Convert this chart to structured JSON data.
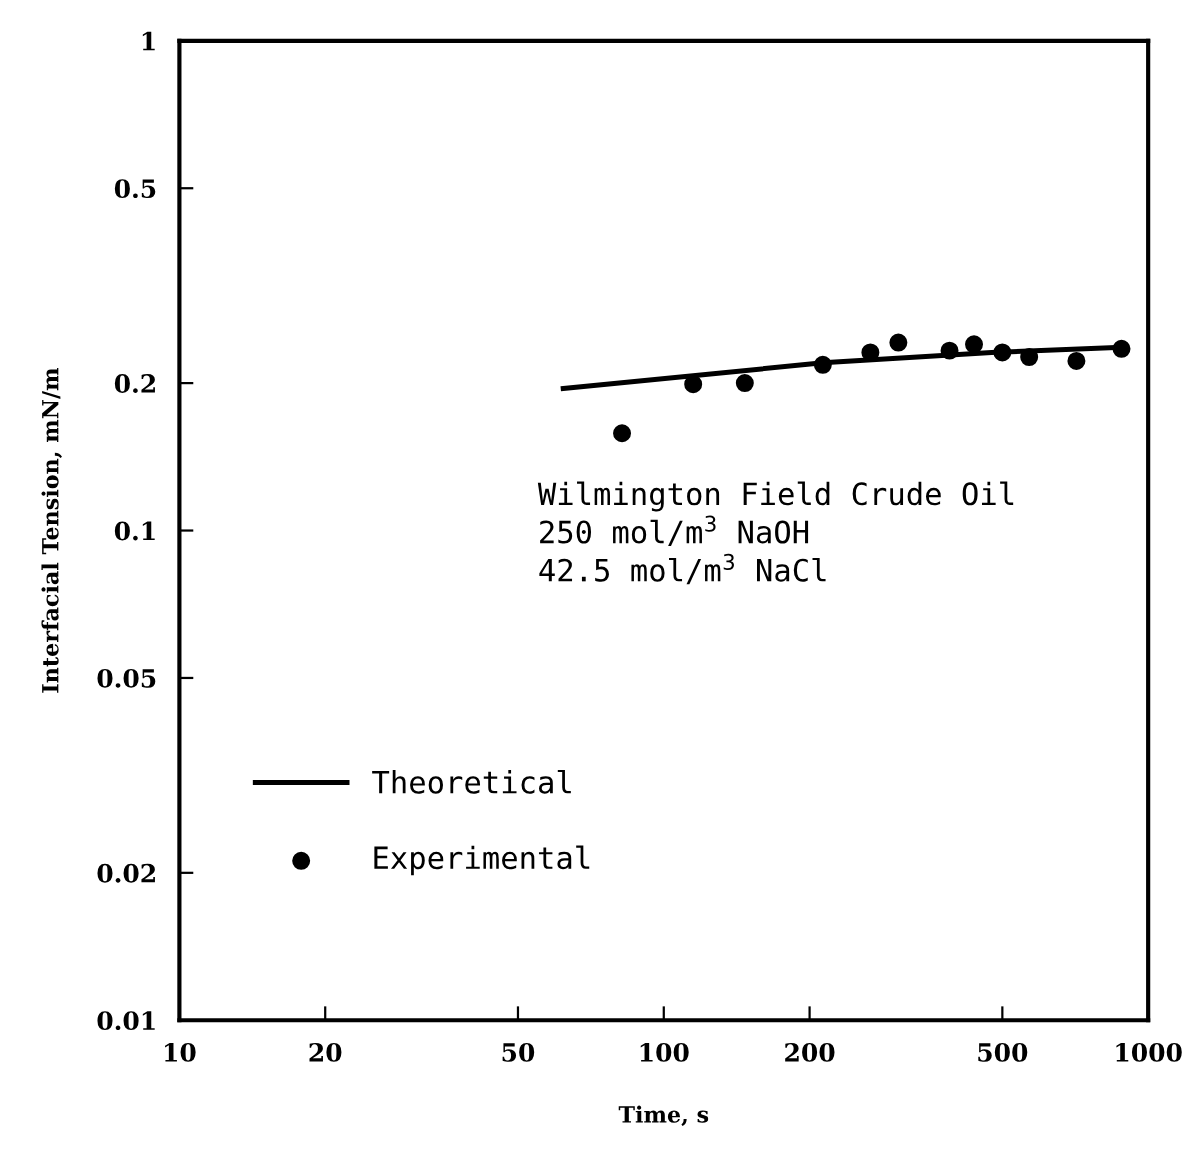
{
  "chart_data": {
    "type": "scatter",
    "xlabel": "Time, s",
    "ylabel": "Interfacial Tension, mN/m",
    "log": "xy",
    "xlim": [
      10,
      1000
    ],
    "ylim": [
      0.01,
      1
    ],
    "xticks": [
      10,
      20,
      50,
      100,
      200,
      500,
      1000
    ],
    "yticks": [
      0.01,
      0.02,
      0.05,
      0.1,
      0.2,
      0.5,
      1
    ],
    "grid": false,
    "legend": "bottom left",
    "annotations": [
      "Wilmington Field Crude Oil\n250 mol/m$^{3}$ NaOH\n42.5 mol/m$^{3}$ NaCl"
    ],
    "series": [
      {
        "name": "Theoretical",
        "type": "line",
        "color": "#000000",
        "marker": "none",
        "line_style": "solid",
        "x": [
          62,
          213,
          475,
          900
        ],
        "values": [
          0.195,
          0.22,
          0.231,
          0.237
        ]
      },
      {
        "name": "Experimental",
        "color": "#000000",
        "marker": "circle",
        "x": [
          82,
          115,
          147,
          213,
          267,
          305,
          389,
          437,
          500,
          568,
          711,
          881
        ],
        "values": [
          0.158,
          0.199,
          0.2,
          0.218,
          0.231,
          0.242,
          0.233,
          0.24,
          0.231,
          0.226,
          0.222,
          0.235
        ]
      }
    ]
  }
}
